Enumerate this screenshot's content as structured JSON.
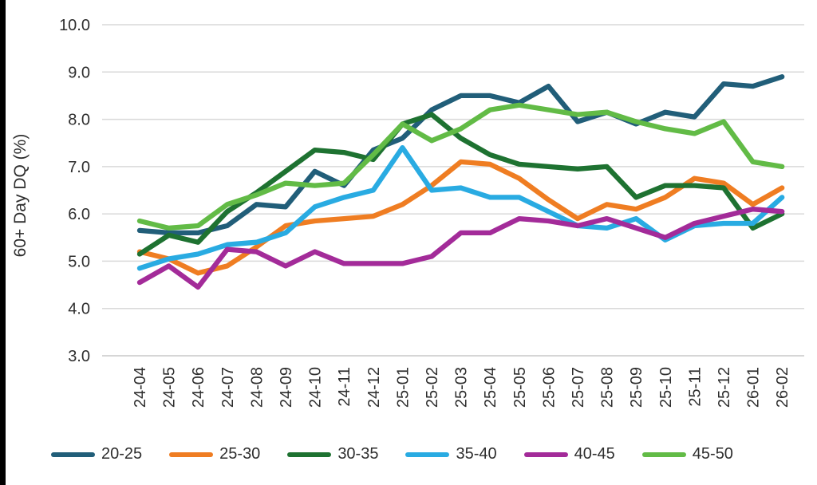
{
  "chart_data": {
    "type": "line",
    "title": "",
    "xlabel": "",
    "ylabel": "60+ Day DQ (%)",
    "ylim": [
      3.0,
      10.0
    ],
    "ytick_step": 1.0,
    "ytick_labels": [
      "10.0",
      "9.0",
      "8.0",
      "7.0",
      "6.0",
      "5.0",
      "4.0",
      "3.0"
    ],
    "grid": true,
    "legend_position": "bottom",
    "categories": [
      "24-04",
      "24-05",
      "24-06",
      "24-07",
      "24-08",
      "24-09",
      "24-10",
      "24-11",
      "24-12",
      "25-01",
      "25-02",
      "25-03",
      "25-04",
      "25-05",
      "25-06",
      "25-07",
      "25-08",
      "25-09",
      "25-10",
      "25-11",
      "25-12",
      "26-01",
      "26-02"
    ],
    "series": [
      {
        "name": "20-25",
        "color": "#215e79",
        "values": [
          5.65,
          5.6,
          5.6,
          5.75,
          6.2,
          6.15,
          6.9,
          6.6,
          7.35,
          7.6,
          8.2,
          8.5,
          8.5,
          8.35,
          8.7,
          7.95,
          8.15,
          7.9,
          8.15,
          8.05,
          8.75,
          8.7,
          8.9
        ]
      },
      {
        "name": "25-30",
        "color": "#ef7d22",
        "values": [
          5.2,
          5.05,
          4.75,
          4.9,
          5.3,
          5.75,
          5.85,
          5.9,
          5.95,
          6.2,
          6.6,
          7.1,
          7.05,
          6.75,
          6.3,
          5.9,
          6.2,
          6.1,
          6.35,
          6.75,
          6.65,
          6.2,
          6.55
        ]
      },
      {
        "name": "30-35",
        "color": "#1e7231",
        "values": [
          5.15,
          5.55,
          5.4,
          6.05,
          6.45,
          6.9,
          7.35,
          7.3,
          7.15,
          7.9,
          8.1,
          7.6,
          7.25,
          7.05,
          7.0,
          6.95,
          7.0,
          6.35,
          6.6,
          6.6,
          6.55,
          5.7,
          6.0
        ]
      },
      {
        "name": "35-40",
        "color": "#29abe2",
        "values": [
          4.85,
          5.05,
          5.15,
          5.35,
          5.4,
          5.6,
          6.15,
          6.35,
          6.5,
          7.4,
          6.5,
          6.55,
          6.35,
          6.35,
          6.05,
          5.75,
          5.7,
          5.9,
          5.45,
          5.75,
          5.8,
          5.8,
          6.35
        ]
      },
      {
        "name": "40-45",
        "color": "#a32b99",
        "values": [
          4.55,
          4.9,
          4.45,
          5.25,
          5.2,
          4.9,
          5.2,
          4.95,
          4.95,
          4.95,
          5.1,
          5.6,
          5.6,
          5.9,
          5.85,
          5.75,
          5.9,
          5.7,
          5.5,
          5.8,
          5.95,
          6.1,
          6.05
        ]
      },
      {
        "name": "45-50",
        "color": "#62bb46",
        "values": [
          5.85,
          5.7,
          5.75,
          6.2,
          6.4,
          6.65,
          6.6,
          6.65,
          7.25,
          7.9,
          7.55,
          7.8,
          8.2,
          8.3,
          8.2,
          8.1,
          8.15,
          7.95,
          7.8,
          7.7,
          7.95,
          7.1,
          7.0
        ]
      }
    ]
  },
  "style": {
    "gridline_color": "#d9d9d9",
    "baseline_color": "#c8c8c8",
    "text_color": "#2e2e2e",
    "background": "#ffffff"
  }
}
